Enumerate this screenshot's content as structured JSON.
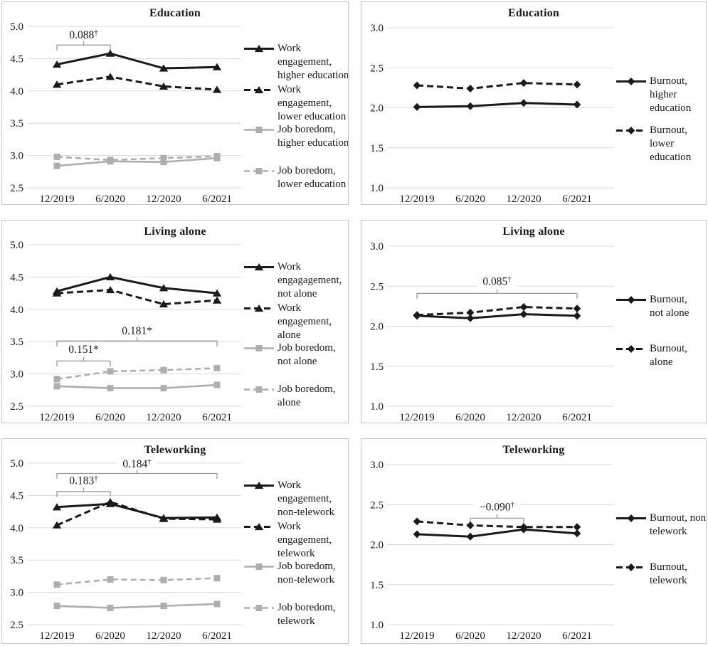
{
  "figure": {
    "row_titles": [
      "Education",
      "Living alone",
      "Teleworking"
    ],
    "colors": {
      "engagement_burnout": "#1a1a1a",
      "boredom": "#aeaeae",
      "gridline": "#d9d9d9",
      "bracket": "#999999"
    }
  },
  "chart_data": [
    {
      "type": "line",
      "title": "Education",
      "x": [
        "12/2019",
        "6/2020",
        "12/2020",
        "6/2021"
      ],
      "ylim": [
        2.5,
        5.0
      ],
      "y_ticks": [
        "5.0",
        "4.5",
        "4.0",
        "3.5",
        "3.0",
        "2.5"
      ],
      "grid": true,
      "legend_position": "right",
      "series": [
        {
          "name": "Work engagement, higher education",
          "label": "Work\nengagement,\nhigher education",
          "values": [
            4.41,
            4.58,
            4.35,
            4.37
          ],
          "color": "#1a1a1a",
          "line": "solid",
          "marker": "triangle"
        },
        {
          "name": "Work engagement, lower education",
          "label": "Work\nengagement,\nlower education",
          "values": [
            4.1,
            4.22,
            4.07,
            4.02
          ],
          "color": "#1a1a1a",
          "line": "dashed",
          "marker": "triangle"
        },
        {
          "name": "Job boredom, higher education",
          "label": "Job boredom,\nhigher education",
          "values": [
            2.84,
            2.91,
            2.9,
            2.96
          ],
          "color": "#aeaeae",
          "line": "solid",
          "marker": "square"
        },
        {
          "name": "Job boredom, lower education",
          "label": "Job boredom,\nlower education",
          "values": [
            2.98,
            2.93,
            2.96,
            2.99
          ],
          "color": "#aeaeae",
          "line": "dashed",
          "marker": "square"
        }
      ],
      "annotations": [
        {
          "text": "0.088",
          "sup": "†",
          "from": 0,
          "to": 1,
          "bracket_y": 4.71,
          "label_y": 4.87
        }
      ]
    },
    {
      "type": "line",
      "title": "Education",
      "x": [
        "12/2019",
        "6/2020",
        "12/2020",
        "6/2021"
      ],
      "ylim": [
        1.0,
        3.0
      ],
      "y_ticks": [
        "3.0",
        "2.5",
        "2.0",
        "1.5",
        "1.0"
      ],
      "grid": true,
      "legend_position": "right",
      "series": [
        {
          "name": "Burnout, higher education",
          "label": "Burnout,\nhigher\neducation",
          "values": [
            2.01,
            2.02,
            2.06,
            2.04
          ],
          "color": "#1a1a1a",
          "line": "solid",
          "marker": "diamond"
        },
        {
          "name": "Burnout, lower education",
          "label": "Burnout,\nlower\neducation",
          "values": [
            2.28,
            2.24,
            2.31,
            2.29
          ],
          "color": "#1a1a1a",
          "line": "dashed",
          "marker": "diamond"
        }
      ],
      "annotations": []
    },
    {
      "type": "line",
      "title": "Living alone",
      "x": [
        "12/2019",
        "6/2020",
        "12/2020",
        "6/2021"
      ],
      "ylim": [
        2.5,
        5.0
      ],
      "y_ticks": [
        "5.0",
        "4.5",
        "4.0",
        "3.5",
        "3.0",
        "2.5"
      ],
      "grid": true,
      "legend_position": "right",
      "series": [
        {
          "name": "Work engagagement, not alone",
          "label": "Work\nengagagement,\nnot alone",
          "values": [
            4.28,
            4.5,
            4.33,
            4.25
          ],
          "color": "#1a1a1a",
          "line": "solid",
          "marker": "triangle"
        },
        {
          "name": "Work engagement, alone",
          "label": "Work\nengagement,\nalone",
          "values": [
            4.25,
            4.3,
            4.08,
            4.14
          ],
          "color": "#1a1a1a",
          "line": "dashed",
          "marker": "triangle"
        },
        {
          "name": "Job boredom, not alone",
          "label": "Job boredom,\nnot alone",
          "values": [
            2.81,
            2.78,
            2.78,
            2.83
          ],
          "color": "#aeaeae",
          "line": "solid",
          "marker": "square"
        },
        {
          "name": "Job boredom, alone",
          "label": "Job boredom,\nalone",
          "values": [
            2.92,
            3.04,
            3.06,
            3.09
          ],
          "color": "#aeaeae",
          "line": "dashed",
          "marker": "square"
        }
      ],
      "annotations": [
        {
          "text": "0.151*",
          "sup": "",
          "from": 0,
          "to": 1,
          "bracket_y": 3.2,
          "label_y": 3.38
        },
        {
          "text": "0.181*",
          "sup": "",
          "from": 0,
          "to": 3,
          "bracket_y": 3.51,
          "label_y": 3.67
        }
      ]
    },
    {
      "type": "line",
      "title": "Living alone",
      "x": [
        "12/2019",
        "6/2020",
        "12/2020",
        "6/2021"
      ],
      "ylim": [
        1.0,
        3.0
      ],
      "y_ticks": [
        "3.0",
        "2.5",
        "2.0",
        "1.5",
        "1.0"
      ],
      "grid": true,
      "legend_position": "right",
      "series": [
        {
          "name": "Burnout, not alone",
          "label": "Burnout,\nnot alone",
          "values": [
            2.13,
            2.1,
            2.15,
            2.13
          ],
          "color": "#1a1a1a",
          "line": "solid",
          "marker": "diamond"
        },
        {
          "name": "Burnout, alone",
          "label": "Burnout,\nalone",
          "values": [
            2.14,
            2.17,
            2.24,
            2.22
          ],
          "color": "#1a1a1a",
          "line": "dashed",
          "marker": "diamond"
        }
      ],
      "annotations": [
        {
          "text": "0.085",
          "sup": "†",
          "from": 0,
          "to": 3,
          "bracket_y": 2.41,
          "label_y": 2.56
        }
      ]
    },
    {
      "type": "line",
      "title": "Teleworking",
      "x": [
        "12/2019",
        "6/2020",
        "12/2020",
        "6/2021"
      ],
      "ylim": [
        2.5,
        5.0
      ],
      "y_ticks": [
        "5.0",
        "4.5",
        "4.0",
        "3.5",
        "3.0",
        "2.5"
      ],
      "grid": true,
      "legend_position": "right",
      "series": [
        {
          "name": "Work engagement, non-telework",
          "label": "Work\nengagement,\nnon-telework",
          "values": [
            4.32,
            4.37,
            4.15,
            4.16
          ],
          "color": "#1a1a1a",
          "line": "solid",
          "marker": "triangle"
        },
        {
          "name": "Work engagement, telework",
          "label": "Work\nengagement,\ntelework",
          "values": [
            4.04,
            4.4,
            4.14,
            4.13
          ],
          "color": "#1a1a1a",
          "line": "dashed",
          "marker": "triangle"
        },
        {
          "name": "Job boredom, non-telework",
          "label": "Job boredom,\nnon-telework",
          "values": [
            2.79,
            2.76,
            2.79,
            2.82
          ],
          "color": "#aeaeae",
          "line": "solid",
          "marker": "square"
        },
        {
          "name": "Job boredom, telework",
          "label": "Job boredom,\ntelework",
          "values": [
            3.12,
            3.2,
            3.19,
            3.22
          ],
          "color": "#aeaeae",
          "line": "dashed",
          "marker": "square"
        }
      ],
      "annotations": [
        {
          "text": "0.183",
          "sup": "†",
          "from": 0,
          "to": 1,
          "bracket_y": 4.56,
          "label_y": 4.73
        },
        {
          "text": "0.184",
          "sup": "†",
          "from": 0,
          "to": 3,
          "bracket_y": 4.84,
          "label_y": 4.99
        }
      ]
    },
    {
      "type": "line",
      "title": "Teleworking",
      "x": [
        "12/2019",
        "6/2020",
        "12/2020",
        "6/2021"
      ],
      "ylim": [
        1.0,
        3.0
      ],
      "y_ticks": [
        "3.0",
        "2.5",
        "2.0",
        "1.5",
        "1.0"
      ],
      "grid": true,
      "legend_position": "right",
      "series": [
        {
          "name": "Burnout, non-telework",
          "label": "Burnout, non-\ntelework",
          "values": [
            2.13,
            2.1,
            2.19,
            2.14
          ],
          "color": "#1a1a1a",
          "line": "solid",
          "marker": "diamond"
        },
        {
          "name": "Burnout, telework",
          "label": "Burnout,\ntelework",
          "values": [
            2.29,
            2.24,
            2.22,
            2.22
          ],
          "color": "#1a1a1a",
          "line": "dashed",
          "marker": "diamond"
        }
      ],
      "annotations": [
        {
          "text": "−0.090",
          "sup": "†",
          "from": 1,
          "to": 2,
          "bracket_y": 2.33,
          "label_y": 2.47
        }
      ]
    }
  ]
}
